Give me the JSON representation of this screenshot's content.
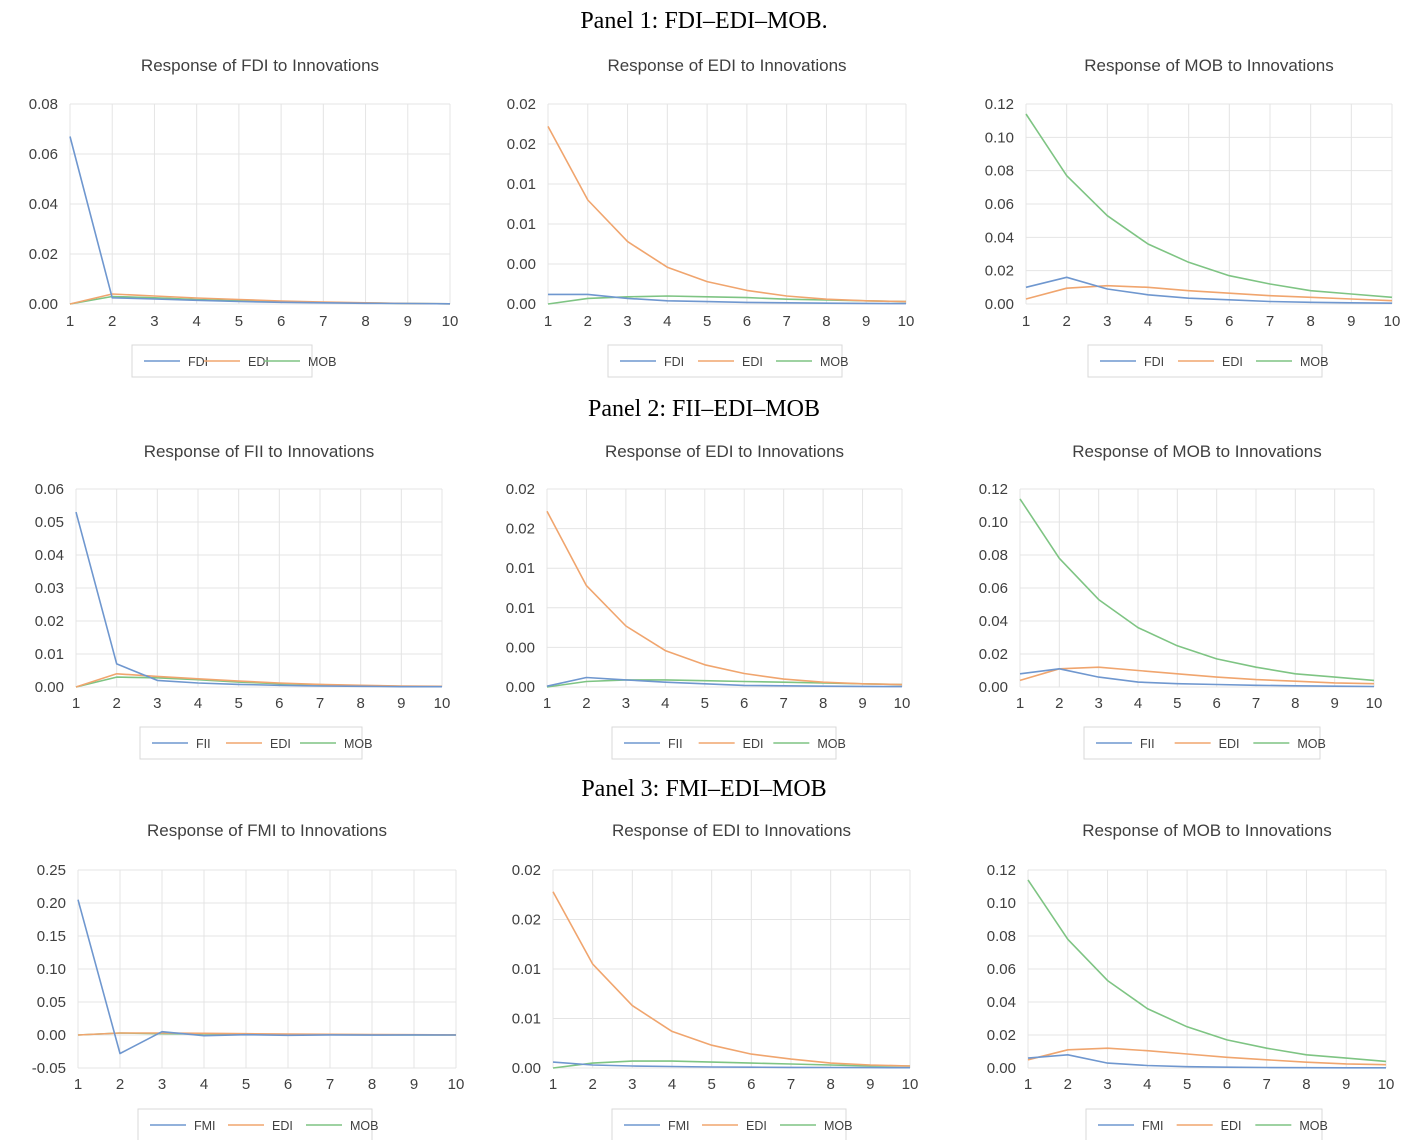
{
  "panels": [
    {
      "title": "Panel 1: FDI–EDI–MOB."
    },
    {
      "title": "Panel 2: FII–EDI–MOB"
    },
    {
      "title": "Panel 3: FMI–EDI–MOB"
    }
  ],
  "colors": {
    "series1": "#6f97cf",
    "series2": "#f0a56e",
    "series3": "#7ec483",
    "grid": "#e4e4e4",
    "text": "#404040"
  },
  "chart_data": [
    {
      "type": "line",
      "title": "Response of FDI to Innovations",
      "x": [
        1,
        2,
        3,
        4,
        5,
        6,
        7,
        8,
        9,
        10
      ],
      "ytick_labels": [
        "0.00",
        "0.02",
        "0.04",
        "0.06",
        "0.08"
      ],
      "ylim": [
        0,
        0.08
      ],
      "legend": "bottom",
      "grid": true,
      "series": [
        {
          "name": "FDI",
          "values": [
            0.067,
            0.0025,
            0.002,
            0.0015,
            0.001,
            0.0007,
            0.0005,
            0.0003,
            0.0002,
            0.0001
          ]
        },
        {
          "name": "EDI",
          "values": [
            0.0,
            0.004,
            0.0032,
            0.0024,
            0.0018,
            0.0012,
            0.0008,
            0.0005,
            0.0002,
            0.0001
          ]
        },
        {
          "name": "MOB",
          "values": [
            0.0,
            0.003,
            0.0025,
            0.0018,
            0.0013,
            0.0009,
            0.0006,
            0.0004,
            0.0002,
            0.0001
          ]
        }
      ]
    },
    {
      "type": "line",
      "title": "Response of EDI to Innovations",
      "x": [
        1,
        2,
        3,
        4,
        5,
        6,
        7,
        8,
        9,
        10
      ],
      "ytick_labels": [
        "0.00",
        "0.00",
        "0.01",
        "0.01",
        "0.02",
        "0.02"
      ],
      "ylim": [
        0,
        0.025
      ],
      "legend": "bottom",
      "grid": true,
      "series": [
        {
          "name": "FDI",
          "values": [
            0.0012,
            0.0012,
            0.0007,
            0.0004,
            0.0003,
            0.0002,
            0.00015,
            0.0001,
            7e-05,
            5e-05
          ]
        },
        {
          "name": "EDI",
          "values": [
            0.0222,
            0.013,
            0.0078,
            0.0046,
            0.0028,
            0.0017,
            0.001,
            0.0006,
            0.0004,
            0.0003
          ]
        },
        {
          "name": "MOB",
          "values": [
            0.0,
            0.0007,
            0.0009,
            0.001,
            0.0009,
            0.0008,
            0.0006,
            0.0005,
            0.0004,
            0.0003
          ]
        }
      ]
    },
    {
      "type": "line",
      "title": "Response of MOB to Innovations",
      "x": [
        1,
        2,
        3,
        4,
        5,
        6,
        7,
        8,
        9,
        10
      ],
      "ytick_labels": [
        "0.00",
        "0.02",
        "0.04",
        "0.06",
        "0.08",
        "0.10",
        "0.12"
      ],
      "ylim": [
        0,
        0.12
      ],
      "legend": "bottom",
      "grid": true,
      "series": [
        {
          "name": "FDI",
          "values": [
            0.01,
            0.016,
            0.009,
            0.0055,
            0.0035,
            0.0025,
            0.0015,
            0.001,
            0.0007,
            0.0005
          ]
        },
        {
          "name": "EDI",
          "values": [
            0.003,
            0.0095,
            0.011,
            0.01,
            0.008,
            0.0065,
            0.005,
            0.004,
            0.003,
            0.002
          ]
        },
        {
          "name": "MOB",
          "values": [
            0.114,
            0.077,
            0.053,
            0.036,
            0.025,
            0.017,
            0.012,
            0.008,
            0.006,
            0.004
          ]
        }
      ]
    },
    {
      "type": "line",
      "title": "Response of FII to Innovations",
      "x": [
        1,
        2,
        3,
        4,
        5,
        6,
        7,
        8,
        9,
        10
      ],
      "ytick_labels": [
        "0.00",
        "0.01",
        "0.02",
        "0.03",
        "0.04",
        "0.05",
        "0.06"
      ],
      "ylim": [
        0,
        0.06
      ],
      "legend": "bottom",
      "grid": true,
      "series": [
        {
          "name": "FII",
          "values": [
            0.053,
            0.007,
            0.002,
            0.0012,
            0.0008,
            0.0005,
            0.0003,
            0.0002,
            0.0001,
            0.0001
          ]
        },
        {
          "name": "EDI",
          "values": [
            0.0,
            0.004,
            0.0032,
            0.0025,
            0.0018,
            0.0012,
            0.0008,
            0.0005,
            0.0003,
            0.0002
          ]
        },
        {
          "name": "MOB",
          "values": [
            0.0,
            0.003,
            0.0028,
            0.0022,
            0.0015,
            0.001,
            0.0007,
            0.0004,
            0.0002,
            0.0001
          ]
        }
      ]
    },
    {
      "type": "line",
      "title": "Response of EDI to Innovations",
      "x": [
        1,
        2,
        3,
        4,
        5,
        6,
        7,
        8,
        9,
        10
      ],
      "ytick_labels": [
        "0.00",
        "0.00",
        "0.01",
        "0.01",
        "0.02",
        "0.02"
      ],
      "ylim": [
        0,
        0.025
      ],
      "legend": "bottom",
      "grid": true,
      "series": [
        {
          "name": "FII",
          "values": [
            0.0001,
            0.0012,
            0.0009,
            0.0006,
            0.0004,
            0.0002,
            0.00015,
            0.0001,
            7e-05,
            5e-05
          ]
        },
        {
          "name": "EDI",
          "values": [
            0.0222,
            0.0128,
            0.0077,
            0.0046,
            0.0028,
            0.0017,
            0.001,
            0.0006,
            0.0004,
            0.0003
          ]
        },
        {
          "name": "MOB",
          "values": [
            0.0,
            0.0007,
            0.0009,
            0.0009,
            0.0008,
            0.0007,
            0.0006,
            0.0005,
            0.0004,
            0.0003
          ]
        }
      ]
    },
    {
      "type": "line",
      "title": "Response of MOB to Innovations",
      "x": [
        1,
        2,
        3,
        4,
        5,
        6,
        7,
        8,
        9,
        10
      ],
      "ytick_labels": [
        "0.00",
        "0.02",
        "0.04",
        "0.06",
        "0.08",
        "0.10",
        "0.12"
      ],
      "ylim": [
        0,
        0.12
      ],
      "legend": "bottom",
      "grid": true,
      "series": [
        {
          "name": "FII",
          "values": [
            0.008,
            0.011,
            0.006,
            0.003,
            0.002,
            0.0015,
            0.001,
            0.0007,
            0.0005,
            0.0003
          ]
        },
        {
          "name": "EDI",
          "values": [
            0.004,
            0.011,
            0.012,
            0.01,
            0.008,
            0.006,
            0.0045,
            0.0035,
            0.0025,
            0.002
          ]
        },
        {
          "name": "MOB",
          "values": [
            0.114,
            0.078,
            0.053,
            0.036,
            0.025,
            0.017,
            0.012,
            0.008,
            0.006,
            0.004
          ]
        }
      ]
    },
    {
      "type": "line",
      "title": "Response of FMI to Innovations",
      "x": [
        1,
        2,
        3,
        4,
        5,
        6,
        7,
        8,
        9,
        10
      ],
      "ytick_labels": [
        "-0.05",
        "0.00",
        "0.05",
        "0.10",
        "0.15",
        "0.20",
        "0.25"
      ],
      "ylim": [
        -0.05,
        0.25
      ],
      "legend": "bottom",
      "grid": true,
      "series": [
        {
          "name": "FMI",
          "values": [
            0.205,
            -0.028,
            0.005,
            -0.001,
            0.0005,
            -0.0005,
            0.0002,
            -0.0001,
            0.0001,
            0.0
          ]
        },
        {
          "name": "EDI",
          "values": [
            0.0,
            0.003,
            0.003,
            0.0025,
            0.002,
            0.0015,
            0.001,
            0.0007,
            0.0004,
            0.0002
          ]
        },
        {
          "name": "MOB",
          "values": [
            0.0,
            0.003,
            0.002,
            0.0015,
            0.001,
            0.0007,
            0.0005,
            0.0003,
            0.0002,
            0.0001
          ]
        }
      ]
    },
    {
      "type": "line",
      "title": "Response of EDI to Innovations",
      "x": [
        1,
        2,
        3,
        4,
        5,
        6,
        7,
        8,
        9,
        10
      ],
      "ytick_labels": [
        "0.00",
        "0.01",
        "0.01",
        "0.02",
        "0.02"
      ],
      "ylim": [
        0,
        0.02
      ],
      "legend": "bottom",
      "grid": true,
      "series": [
        {
          "name": "FMI",
          "values": [
            0.0006,
            0.0003,
            0.0002,
            0.00015,
            0.0001,
            8e-05,
            6e-05,
            5e-05,
            4e-05,
            3e-05
          ]
        },
        {
          "name": "EDI",
          "values": [
            0.0178,
            0.0105,
            0.0063,
            0.0037,
            0.0023,
            0.0014,
            0.0009,
            0.0005,
            0.0003,
            0.0002
          ]
        },
        {
          "name": "MOB",
          "values": [
            0.0,
            0.0005,
            0.0007,
            0.0007,
            0.0006,
            0.0005,
            0.0004,
            0.0003,
            0.0002,
            0.0002
          ]
        }
      ]
    },
    {
      "type": "line",
      "title": "Response of MOB to Innovations",
      "x": [
        1,
        2,
        3,
        4,
        5,
        6,
        7,
        8,
        9,
        10
      ],
      "ytick_labels": [
        "0.00",
        "0.02",
        "0.04",
        "0.06",
        "0.08",
        "0.10",
        "0.12"
      ],
      "ylim": [
        0,
        0.12
      ],
      "legend": "bottom",
      "grid": true,
      "series": [
        {
          "name": "FMI",
          "values": [
            0.006,
            0.008,
            0.003,
            0.0015,
            0.0008,
            0.0005,
            0.0003,
            0.0002,
            0.0001,
            0.0001
          ]
        },
        {
          "name": "EDI",
          "values": [
            0.005,
            0.011,
            0.012,
            0.0105,
            0.0085,
            0.0065,
            0.005,
            0.0035,
            0.0025,
            0.002
          ]
        },
        {
          "name": "MOB",
          "values": [
            0.114,
            0.078,
            0.053,
            0.036,
            0.025,
            0.017,
            0.012,
            0.008,
            0.006,
            0.004
          ]
        }
      ]
    }
  ]
}
